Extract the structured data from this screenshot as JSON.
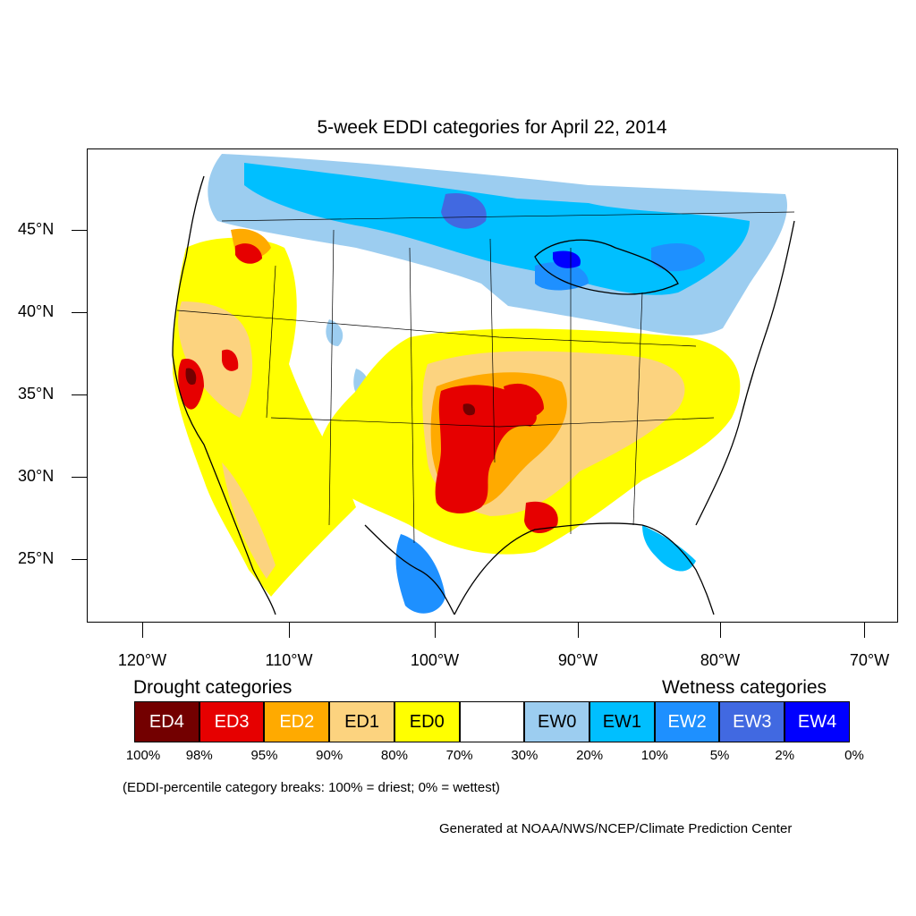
{
  "title": "5-week EDDI categories for April 22, 2014",
  "lat_labels": [
    "45°N",
    "40°N",
    "35°N",
    "30°N",
    "25°N"
  ],
  "lon_labels": [
    "120°W",
    "110°W",
    "100°W",
    "90°W",
    "80°W",
    "70°W"
  ],
  "legend": {
    "drought_heading": "Drought categories",
    "wetness_heading": "Wetness categories",
    "categories": [
      {
        "label": "ED4",
        "color": "#730000",
        "text_color": "#ffffff"
      },
      {
        "label": "ED3",
        "color": "#e60000",
        "text_color": "#ffffff"
      },
      {
        "label": "ED2",
        "color": "#ffaa00",
        "text_color": "#ffffff"
      },
      {
        "label": "ED1",
        "color": "#fcd37f",
        "text_color": "#000000"
      },
      {
        "label": "ED0",
        "color": "#ffff00",
        "text_color": "#000000"
      },
      {
        "label": "",
        "color": "#ffffff",
        "text_color": "#000000"
      },
      {
        "label": "EW0",
        "color": "#9ccdf0",
        "text_color": "#000000"
      },
      {
        "label": "EW1",
        "color": "#00bfff",
        "text_color": "#000000"
      },
      {
        "label": "EW2",
        "color": "#1e90ff",
        "text_color": "#ffffff"
      },
      {
        "label": "EW3",
        "color": "#4169e1",
        "text_color": "#ffffff"
      },
      {
        "label": "EW4",
        "color": "#0000ff",
        "text_color": "#ffffff"
      }
    ],
    "breaks": [
      "100%",
      "98%",
      "95%",
      "90%",
      "80%",
      "70%",
      "30%",
      "20%",
      "10%",
      "5%",
      "2%",
      "0%"
    ]
  },
  "note": "(EDDI-percentile category breaks: 100% = driest; 0% = wettest)",
  "credit": "Generated at NOAA/NWS/NCEP/Climate Prediction Center"
}
